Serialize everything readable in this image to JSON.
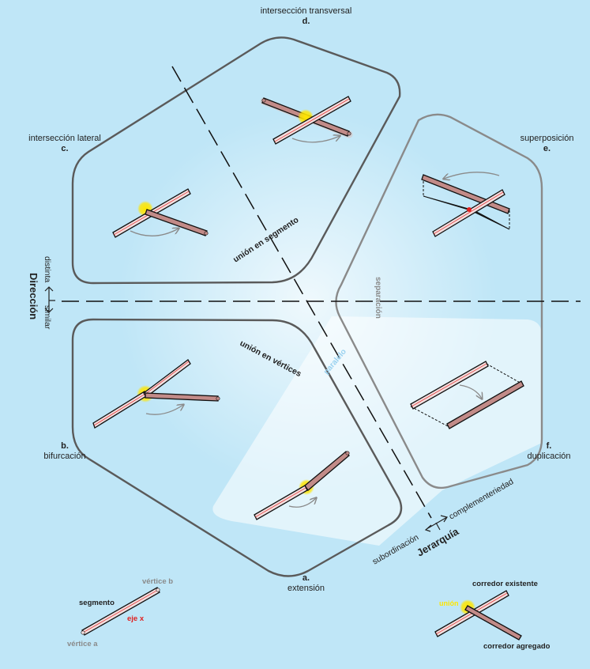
{
  "cases": {
    "a": {
      "letter": "a.",
      "name": "extensión"
    },
    "b": {
      "letter": "b.",
      "name": "bifurcación"
    },
    "c": {
      "letter": "c.",
      "name": "intersección lateral"
    },
    "d": {
      "letter": "d.",
      "name": "intersección transversal"
    },
    "e": {
      "letter": "e.",
      "name": "superposición"
    },
    "f": {
      "letter": "f.",
      "name": "duplicación"
    }
  },
  "zones": {
    "segment_union": "unión en segmento",
    "vertex_union": "unión en vértices",
    "separation": "separación",
    "parallel": "paralelo"
  },
  "axes": {
    "direction": {
      "title": "Dirección",
      "different": "distinta",
      "similar": "similar"
    },
    "hierarchy": {
      "title": "Jerarquía",
      "subordination": "subordinación",
      "complementarity": "complementeriedad"
    }
  },
  "legend_segment": {
    "vertex_a": "vértice a",
    "vertex_b": "vértice b",
    "segment": "segmento",
    "axis_x": "eje x"
  },
  "legend_corridor": {
    "union": "unión",
    "existing": "corredor existente",
    "added": "corredor agregado"
  },
  "colors": {
    "background": "#bfe6f7",
    "existing_fill": "#f2dede",
    "added_fill": "#c28b88",
    "union_highlight": "#ffe600",
    "axis_red": "#e02020"
  }
}
